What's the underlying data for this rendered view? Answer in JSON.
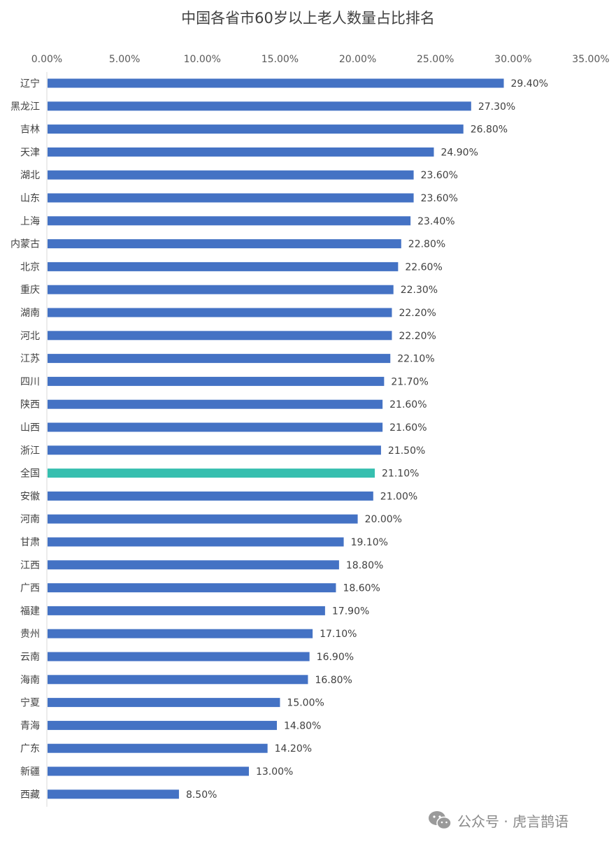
{
  "chart_data": {
    "type": "bar",
    "orientation": "horizontal",
    "title": "中国各省市60岁以上老人数量占比排名",
    "xlabel": "",
    "ylabel": "",
    "xlim": [
      0,
      35
    ],
    "x_ticks": [
      "0.00%",
      "5.00%",
      "10.00%",
      "15.00%",
      "20.00%",
      "25.00%",
      "30.00%",
      "35.00%"
    ],
    "axis_position": "top",
    "grid": false,
    "legend": "none",
    "categories": [
      "辽宁",
      "黑龙江",
      "吉林",
      "天津",
      "湖北",
      "山东",
      "上海",
      "内蒙古",
      "北京",
      "重庆",
      "湖南",
      "河北",
      "江苏",
      "四川",
      "陕西",
      "山西",
      "浙江",
      "全国",
      "安徽",
      "河南",
      "甘肃",
      "江西",
      "广西",
      "福建",
      "贵州",
      "云南",
      "海南",
      "宁夏",
      "青海",
      "广东",
      "新疆",
      "西藏"
    ],
    "values": [
      29.4,
      27.3,
      26.8,
      24.9,
      23.6,
      23.6,
      23.4,
      22.8,
      22.6,
      22.3,
      22.2,
      22.2,
      22.1,
      21.7,
      21.6,
      21.6,
      21.5,
      21.1,
      21.0,
      20.0,
      19.1,
      18.8,
      18.6,
      17.9,
      17.1,
      16.9,
      16.8,
      15.0,
      14.8,
      14.2,
      13.0,
      8.5
    ],
    "value_labels": [
      "29.40%",
      "27.30%",
      "26.80%",
      "24.90%",
      "23.60%",
      "23.60%",
      "23.40%",
      "22.80%",
      "22.60%",
      "22.30%",
      "22.20%",
      "22.20%",
      "22.10%",
      "21.70%",
      "21.60%",
      "21.60%",
      "21.50%",
      "21.10%",
      "21.00%",
      "20.00%",
      "19.10%",
      "18.80%",
      "18.60%",
      "17.90%",
      "17.10%",
      "16.90%",
      "16.80%",
      "15.00%",
      "14.80%",
      "14.20%",
      "13.00%",
      "8.50%"
    ],
    "highlight_category": "全国",
    "colors": {
      "bar": "#4472C4",
      "highlight": "#36BFAF",
      "axis": "#D9D9D9"
    }
  },
  "watermark": {
    "icon": "wechat-icon",
    "text": "公众号 · 虎言鹊语"
  }
}
